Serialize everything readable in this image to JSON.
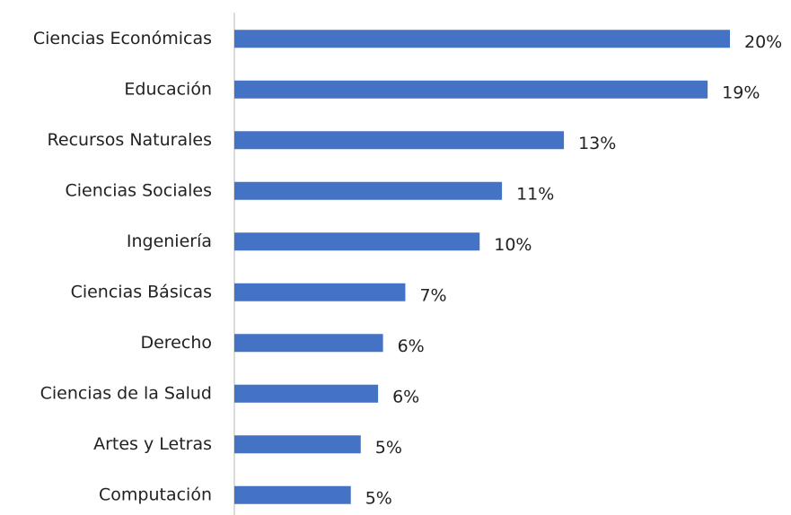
{
  "chart_data": {
    "type": "barh",
    "categories": [
      "Ciencias Económicas",
      "Educación",
      "Recursos Naturales",
      "Ciencias Sociales",
      "Ingeniería",
      "Ciencias Básicas",
      "Derecho",
      "Ciencias de la Salud",
      "Artes y Letras",
      "Computación"
    ],
    "values": [
      20.0,
      19.1,
      13.3,
      10.8,
      9.9,
      6.9,
      6.0,
      5.8,
      5.1,
      4.7
    ],
    "value_labels": [
      "20%",
      "19%",
      "13%",
      "11%",
      "10%",
      "7%",
      "6%",
      "6%",
      "5%",
      "5%"
    ],
    "color": "#4472c4",
    "xlim": [
      0,
      20
    ]
  }
}
